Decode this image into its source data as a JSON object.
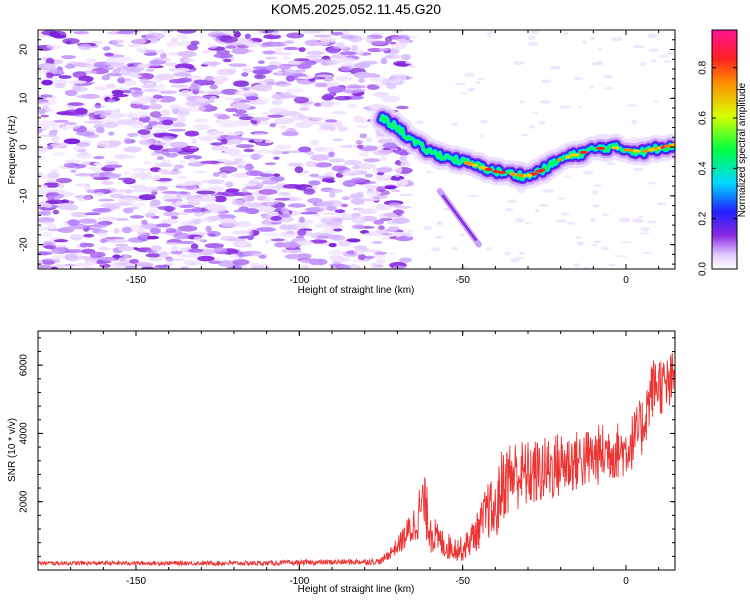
{
  "page": {
    "title": "KOM5.2025.052.11.45.G20"
  },
  "chart_data": [
    {
      "type": "heatmap",
      "xlabel": "Height of straight line (km)",
      "ylabel": "Frequency (Hz)",
      "xlim": [
        -180,
        15
      ],
      "ylim": [
        -25,
        24
      ],
      "xticks": [
        -150,
        -100,
        -50,
        0
      ],
      "yticks": [
        -20,
        -10,
        0,
        10,
        20
      ],
      "colorbar": {
        "label": "Normalized spectral amplitude",
        "range": [
          0,
          0.95
        ],
        "ticks": [
          "0.0",
          "0.2",
          "0.4",
          "0.6",
          "0.8"
        ],
        "colormap": "rainbow (white, violet, blue, cyan, green, yellow, orange, red, pink)"
      },
      "features": {
        "noise_region_x": [
          -180,
          -70
        ],
        "signal_track": {
          "x": [
            -75,
            -70,
            -65,
            -60,
            -55,
            -50,
            -45,
            -40,
            -35,
            -30,
            -25,
            -20,
            -15,
            -10,
            -5,
            0,
            5,
            10,
            15
          ],
          "y": [
            6,
            4,
            1,
            -1,
            -2,
            -3,
            -4,
            -5,
            -5.5,
            -6,
            -4.5,
            -2.5,
            -1.5,
            -0.5,
            0,
            -0.5,
            -1,
            -0.2,
            0.5
          ]
        }
      }
    },
    {
      "type": "line",
      "xlabel": "Height of straight line (km)",
      "ylabel": "SNR (10 * v/v)",
      "xlim": [
        -180,
        15
      ],
      "ylim": [
        0,
        7000
      ],
      "xticks": [
        -150,
        -100,
        -50,
        0
      ],
      "yticks": [
        2000,
        4000,
        6000
      ],
      "line_color": "#ee3333",
      "envelope": {
        "x": [
          -180,
          -150,
          -110,
          -75,
          -70,
          -65,
          -62,
          -60,
          -58,
          -55,
          -50,
          -45,
          -42,
          -40,
          -38,
          -35,
          -30,
          -25,
          -20,
          -15,
          -10,
          -5,
          0,
          5,
          8,
          10,
          12,
          15
        ],
        "mid": [
          200,
          200,
          200,
          250,
          700,
          1300,
          2000,
          1300,
          900,
          700,
          600,
          1200,
          1800,
          1600,
          2500,
          2800,
          2800,
          2900,
          3100,
          3200,
          3300,
          3500,
          3500,
          4200,
          5300,
          5500,
          5300,
          5600
        ],
        "amp": [
          60,
          60,
          70,
          90,
          250,
          600,
          900,
          800,
          500,
          400,
          350,
          600,
          900,
          900,
          1100,
          1100,
          1000,
          1000,
          1000,
          900,
          900,
          900,
          800,
          900,
          900,
          900,
          900,
          900
        ]
      }
    }
  ]
}
